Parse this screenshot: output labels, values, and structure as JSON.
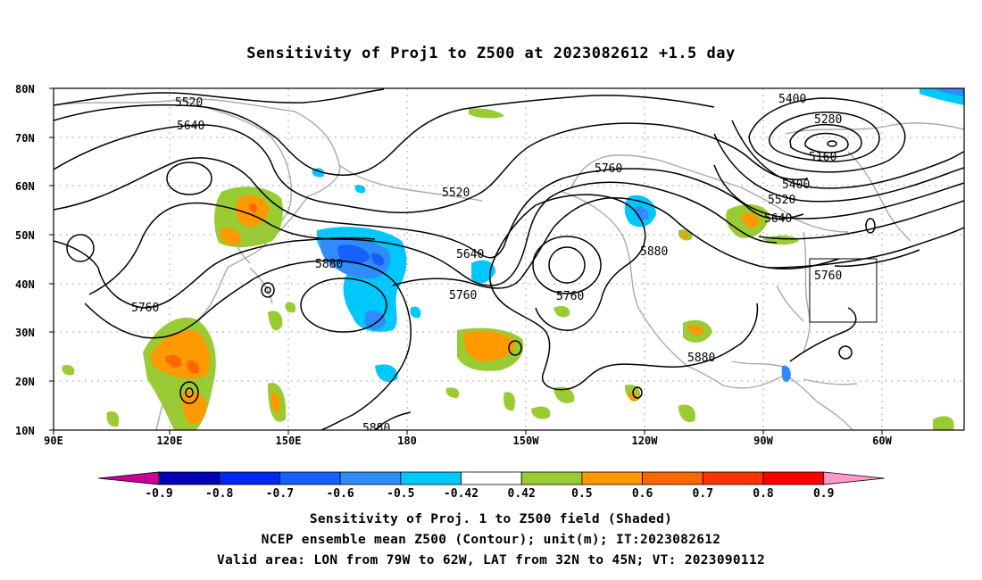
{
  "title": "Sensitivity of Proj1 to Z500 at 2023082612 +1.5 day",
  "axes": {
    "lat_ticks": [
      "80N",
      "70N",
      "60N",
      "50N",
      "40N",
      "30N",
      "20N",
      "10N"
    ],
    "lon_ticks": [
      "90E",
      "120E",
      "150E",
      "180",
      "150W",
      "120W",
      "90W",
      "60W"
    ]
  },
  "contour_labels": [
    {
      "text": "5520",
      "id": "a"
    },
    {
      "text": "5640",
      "id": "b"
    },
    {
      "text": "5520",
      "id": "c"
    },
    {
      "text": "5760",
      "id": "d"
    },
    {
      "text": "5400",
      "id": "e"
    },
    {
      "text": "5280",
      "id": "f"
    },
    {
      "text": "5160",
      "id": "g"
    },
    {
      "text": "5400",
      "id": "h"
    },
    {
      "text": "5520",
      "id": "i"
    },
    {
      "text": "5640",
      "id": "j"
    },
    {
      "text": "5880",
      "id": "k"
    },
    {
      "text": "5640",
      "id": "l"
    },
    {
      "text": "5760",
      "id": "m"
    },
    {
      "text": "5760",
      "id": "n"
    },
    {
      "text": "5880",
      "id": "o"
    },
    {
      "text": "5760",
      "id": "p"
    },
    {
      "text": "5760",
      "id": "q"
    },
    {
      "text": "5880",
      "id": "r"
    },
    {
      "text": "5880",
      "id": "s"
    }
  ],
  "colorbar": {
    "labels": [
      "-0.9",
      "-0.8",
      "-0.7",
      "-0.6",
      "-0.5",
      "-0.42",
      "0.42",
      "0.5",
      "0.6",
      "0.7",
      "0.8",
      "0.9"
    ],
    "colors": [
      "#cc0099",
      "#0000b4",
      "#0028f0",
      "#1560ff",
      "#2e8cff",
      "#00c8ff",
      "#ffffff",
      "#99cc33",
      "#ff9900",
      "#ff6600",
      "#ff3300",
      "#ff0000",
      "#ff99cc"
    ]
  },
  "validation_box": {
    "lon_range": "79W to 62W",
    "lat_range": "32N to 45N"
  },
  "captions": {
    "line1": "Sensitivity of Proj. 1 to Z500 field (Shaded)",
    "line2": "NCEP ensemble mean Z500 (Contour); unit(m); IT:2023082612",
    "line3": "Valid area: LON from 79W to 62W, LAT from 32N to 45N; VT: 2023090112"
  }
}
